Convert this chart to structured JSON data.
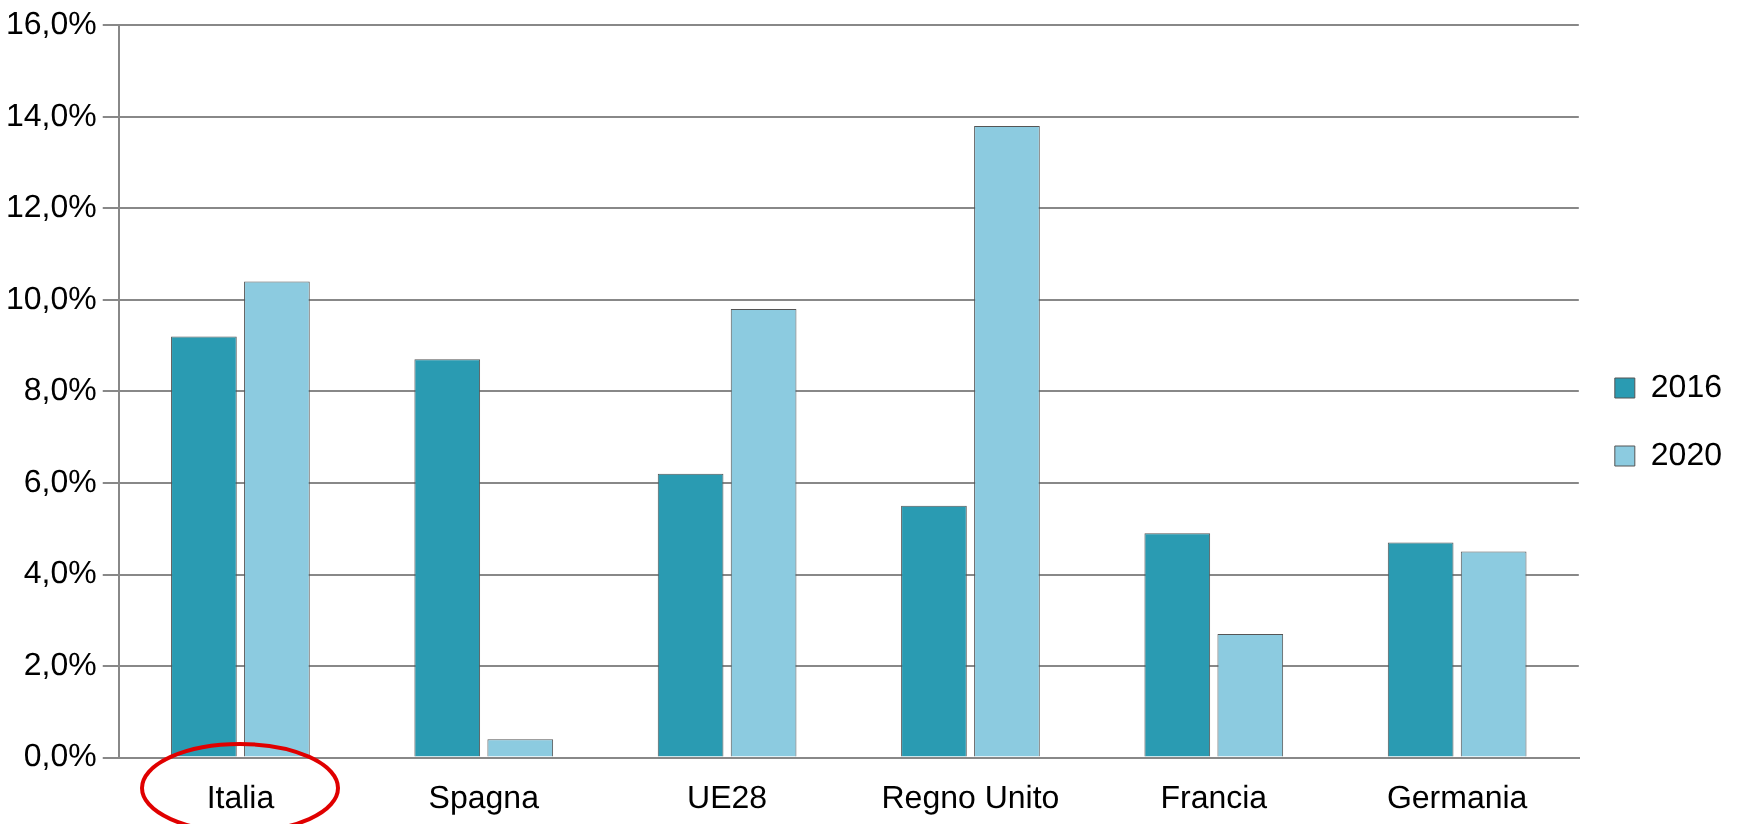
{
  "chart_data": {
    "type": "bar",
    "categories": [
      "Italia",
      "Spagna",
      "UE28",
      "Regno Unito",
      "Francia",
      "Germania"
    ],
    "series": [
      {
        "name": "2016",
        "color": "#2a9bb2",
        "values": [
          9.2,
          8.7,
          6.2,
          5.5,
          4.9,
          4.7
        ]
      },
      {
        "name": "2020",
        "color": "#8ccbe0",
        "values": [
          10.4,
          0.4,
          9.8,
          13.8,
          2.7,
          4.5
        ]
      }
    ],
    "ylim": [
      0,
      16
    ],
    "yticks": [
      {
        "value": 0,
        "label": "0,0%"
      },
      {
        "value": 2,
        "label": "2,0%"
      },
      {
        "value": 4,
        "label": "4,0%"
      },
      {
        "value": 6,
        "label": "6,0%"
      },
      {
        "value": 8,
        "label": "8,0%"
      },
      {
        "value": 10,
        "label": "10,0%"
      },
      {
        "value": 12,
        "label": "12,0%"
      },
      {
        "value": 14,
        "label": "14,0%"
      },
      {
        "value": 16,
        "label": "16,0%"
      }
    ],
    "grid": "y",
    "legend": "right"
  }
}
